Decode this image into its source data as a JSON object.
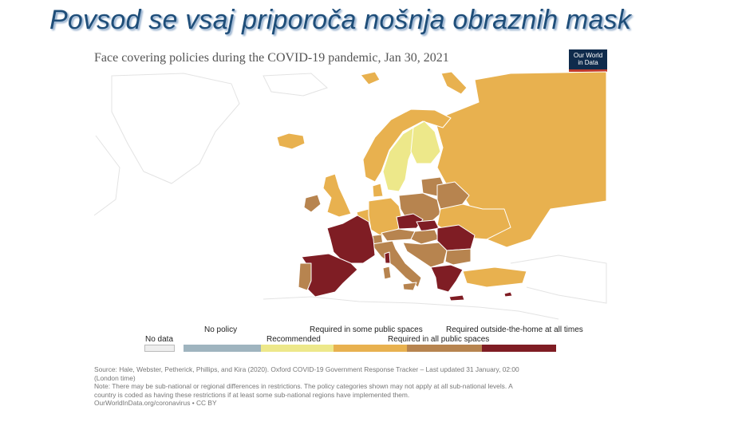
{
  "slide": {
    "title": "Povsod se vsaj priporoča nošnja obraznih mask"
  },
  "chart": {
    "title": "Face covering policies during the COVID-19 pandemic, Jan 30, 2021",
    "logo": [
      "Our World",
      "in Data"
    ]
  },
  "legend": {
    "no_data": "No data",
    "items": [
      {
        "label": "No policy",
        "color": "#9fb4bf"
      },
      {
        "label": "Recommended",
        "color": "#ede88a"
      },
      {
        "label": "Required in some public spaces",
        "color": "#e8b14f"
      },
      {
        "label": "Required in all public spaces",
        "color": "#b7844f"
      },
      {
        "label": "Required outside-the-home at all times",
        "color": "#7f1d24"
      }
    ]
  },
  "footer": {
    "source_1": "Source: Hale, Webster, Petherick, Phillips, and Kira (2020). Oxford COVID-19 Government Response Tracker – Last updated 31 January, 02:00",
    "source_2": "(London time)",
    "note_1": "Note: There may be sub-national or regional differences in restrictions. The policy categories shown may not apply at all sub-national levels. A",
    "note_2": "country is coded as having these restrictions if at least some sub-national regions have implemented them.",
    "url": "OurWorldInData.org/coronavirus • CC BY"
  },
  "map": {
    "colors": {
      "no_data": "#eeeeee",
      "outline": "#ffffff"
    },
    "regions": [
      {
        "name": "Russia",
        "policy": "Required in some public spaces"
      },
      {
        "name": "Norway",
        "policy": "Required in some public spaces"
      },
      {
        "name": "Sweden",
        "policy": "Recommended"
      },
      {
        "name": "Finland",
        "policy": "Recommended"
      },
      {
        "name": "Iceland",
        "policy": "Required in some public spaces"
      },
      {
        "name": "United Kingdom",
        "policy": "Required in some public spaces"
      },
      {
        "name": "Ireland",
        "policy": "Required in all public spaces"
      },
      {
        "name": "France",
        "policy": "Required outside-the-home at all times"
      },
      {
        "name": "Spain",
        "policy": "Required outside-the-home at all times"
      },
      {
        "name": "Portugal",
        "policy": "Required in all public spaces"
      },
      {
        "name": "Germany",
        "policy": "Required in some public spaces"
      },
      {
        "name": "Poland",
        "policy": "Required in all public spaces"
      },
      {
        "name": "Czechia",
        "policy": "Required outside-the-home at all times"
      },
      {
        "name": "Slovakia",
        "policy": "Required outside-the-home at all times"
      },
      {
        "name": "Romania",
        "policy": "Required outside-the-home at all times"
      },
      {
        "name": "Greece",
        "policy": "Required outside-the-home at all times"
      },
      {
        "name": "Italy",
        "policy": "Required in all public spaces"
      },
      {
        "name": "Belarus",
        "policy": "Required in all public spaces"
      },
      {
        "name": "Ukraine",
        "policy": "Required in some public spaces"
      },
      {
        "name": "Baltic states",
        "policy": "Required in all public spaces"
      },
      {
        "name": "Balkans",
        "policy": "Required in all public spaces"
      },
      {
        "name": "Austria",
        "policy": "Required in all public spaces"
      },
      {
        "name": "Switzerland",
        "policy": "Required in all public spaces"
      },
      {
        "name": "Benelux",
        "policy": "Required in some public spaces"
      },
      {
        "name": "Denmark",
        "policy": "Required in some public spaces"
      },
      {
        "name": "Hungary",
        "policy": "Required in all public spaces"
      },
      {
        "name": "Bulgaria",
        "policy": "Required in all public spaces"
      }
    ]
  }
}
